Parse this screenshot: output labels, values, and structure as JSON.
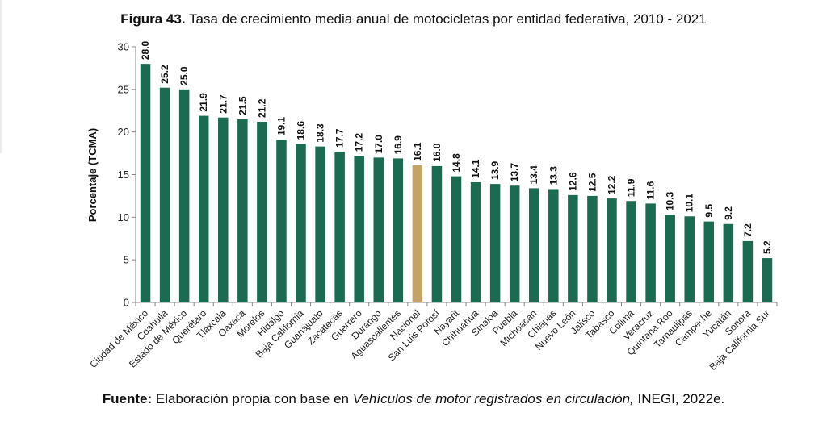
{
  "title": {
    "prefix": "Figura 43.",
    "text": "Tasa de crecimiento media anual de motocicletas por entidad federativa, 2010 - 2021"
  },
  "source": {
    "prefix": "Fuente:",
    "text_before": "Elaboración propia con base en",
    "italic": "Vehículos de motor registrados en circulación,",
    "text_after": "INEGI, 2022e."
  },
  "colors": {
    "bar": "#1b6b52",
    "highlight": "#c4a464",
    "axis": "#888888"
  },
  "chart_data": {
    "type": "bar",
    "title": "Tasa de crecimiento media anual de motocicletas por entidad federativa, 2010 - 2021",
    "xlabel": "",
    "ylabel": "Porcentaje (TCMA)",
    "ylim": [
      0,
      30
    ],
    "yticks": [
      0,
      5,
      10,
      15,
      20,
      25,
      30
    ],
    "grid": false,
    "highlight_category": "Nacional",
    "categories": [
      "Ciudad de México",
      "Coahuila",
      "Estado de México",
      "Querétaro",
      "Tlaxcala",
      "Oaxaca",
      "Morelos",
      "Hidalgo",
      "Baja California",
      "Guanajuato",
      "Zacatecas",
      "Guerrero",
      "Durango",
      "Aguascalientes",
      "Nacional",
      "San Luis Potosí",
      "Nayarit",
      "Chihuahua",
      "Sinaloa",
      "Puebla",
      "Michoacán",
      "Chiapas",
      "Nuevo León",
      "Jalisco",
      "Tabasco",
      "Colima",
      "Veracruz",
      "Quintana Roo",
      "Tamaulipas",
      "Campeche",
      "Yucatán",
      "Sonora",
      "Baja California Sur"
    ],
    "values": [
      28.0,
      25.2,
      25.0,
      21.9,
      21.7,
      21.5,
      21.2,
      19.1,
      18.6,
      18.3,
      17.7,
      17.2,
      17.0,
      16.9,
      16.1,
      16.0,
      14.8,
      14.1,
      13.9,
      13.7,
      13.4,
      13.3,
      12.6,
      12.5,
      12.2,
      11.9,
      11.6,
      10.3,
      10.1,
      9.5,
      9.2,
      7.2,
      5.2
    ],
    "labels": [
      "28.0",
      "25.2",
      "25.0",
      "21.9",
      "21.7",
      "21.5",
      "21.2",
      "19.1",
      "18.6",
      "18.3",
      "17.7",
      "17.2",
      "17.0",
      "16.9",
      "16.1",
      "16.0",
      "14.8",
      "14.1",
      "13.9",
      "13.7",
      "13.4",
      "13.3",
      "12.6",
      "12.5",
      "12.2",
      "11.9",
      "11.6",
      "10.3",
      "10.1",
      "9.5",
      "9.2",
      "7.2",
      "5.2"
    ]
  }
}
